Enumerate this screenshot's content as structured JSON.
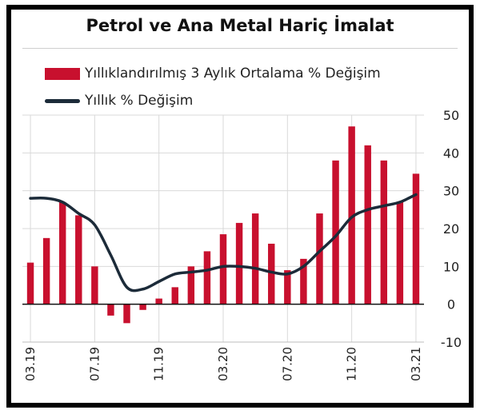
{
  "chart_data": {
    "type": "bar",
    "title": "Petrol ve Ana Metal Hariç İmalat",
    "xlabel": "",
    "ylabel": "",
    "ylim": [
      -10,
      50
    ],
    "yticks": [
      50,
      40,
      30,
      20,
      10,
      0,
      -10
    ],
    "grid": true,
    "legend_position": "top",
    "categories": [
      "03.19",
      "04.19",
      "05.19",
      "06.19",
      "07.19",
      "08.19",
      "09.19",
      "10.19",
      "11.19",
      "12.19",
      "01.20",
      "02.20",
      "03.20",
      "04.20",
      "05.20",
      "06.20",
      "07.20",
      "08.20",
      "09.20",
      "10.20",
      "11.20",
      "12.20",
      "01.21",
      "02.21",
      "03.21"
    ],
    "x_tick_labels": [
      "03.19",
      "07.19",
      "11.19",
      "03.20",
      "07.20",
      "11.20",
      "03.21"
    ],
    "x_tick_indices": [
      0,
      4,
      8,
      12,
      16,
      20,
      24
    ],
    "series": [
      {
        "name": "Yıllıklandırılmış 3 Aylık Ortalama % Değişim",
        "kind": "bar",
        "color": "#c8102e",
        "values": [
          11,
          17.5,
          27,
          23.5,
          10,
          -3,
          -5,
          -1.5,
          1.5,
          4.5,
          10,
          14,
          18.5,
          21.5,
          24,
          16,
          9,
          12,
          24,
          38,
          47,
          42,
          38,
          27,
          34.5
        ]
      },
      {
        "name": "Yıllık % Değişim",
        "kind": "line",
        "color": "#1c2b39",
        "values": [
          28,
          28,
          27,
          24,
          21,
          13,
          4.5,
          4,
          6,
          8,
          8.5,
          9,
          10,
          10,
          9.5,
          8.5,
          8,
          10,
          14,
          18,
          23,
          25,
          26,
          27,
          29
        ]
      }
    ]
  }
}
